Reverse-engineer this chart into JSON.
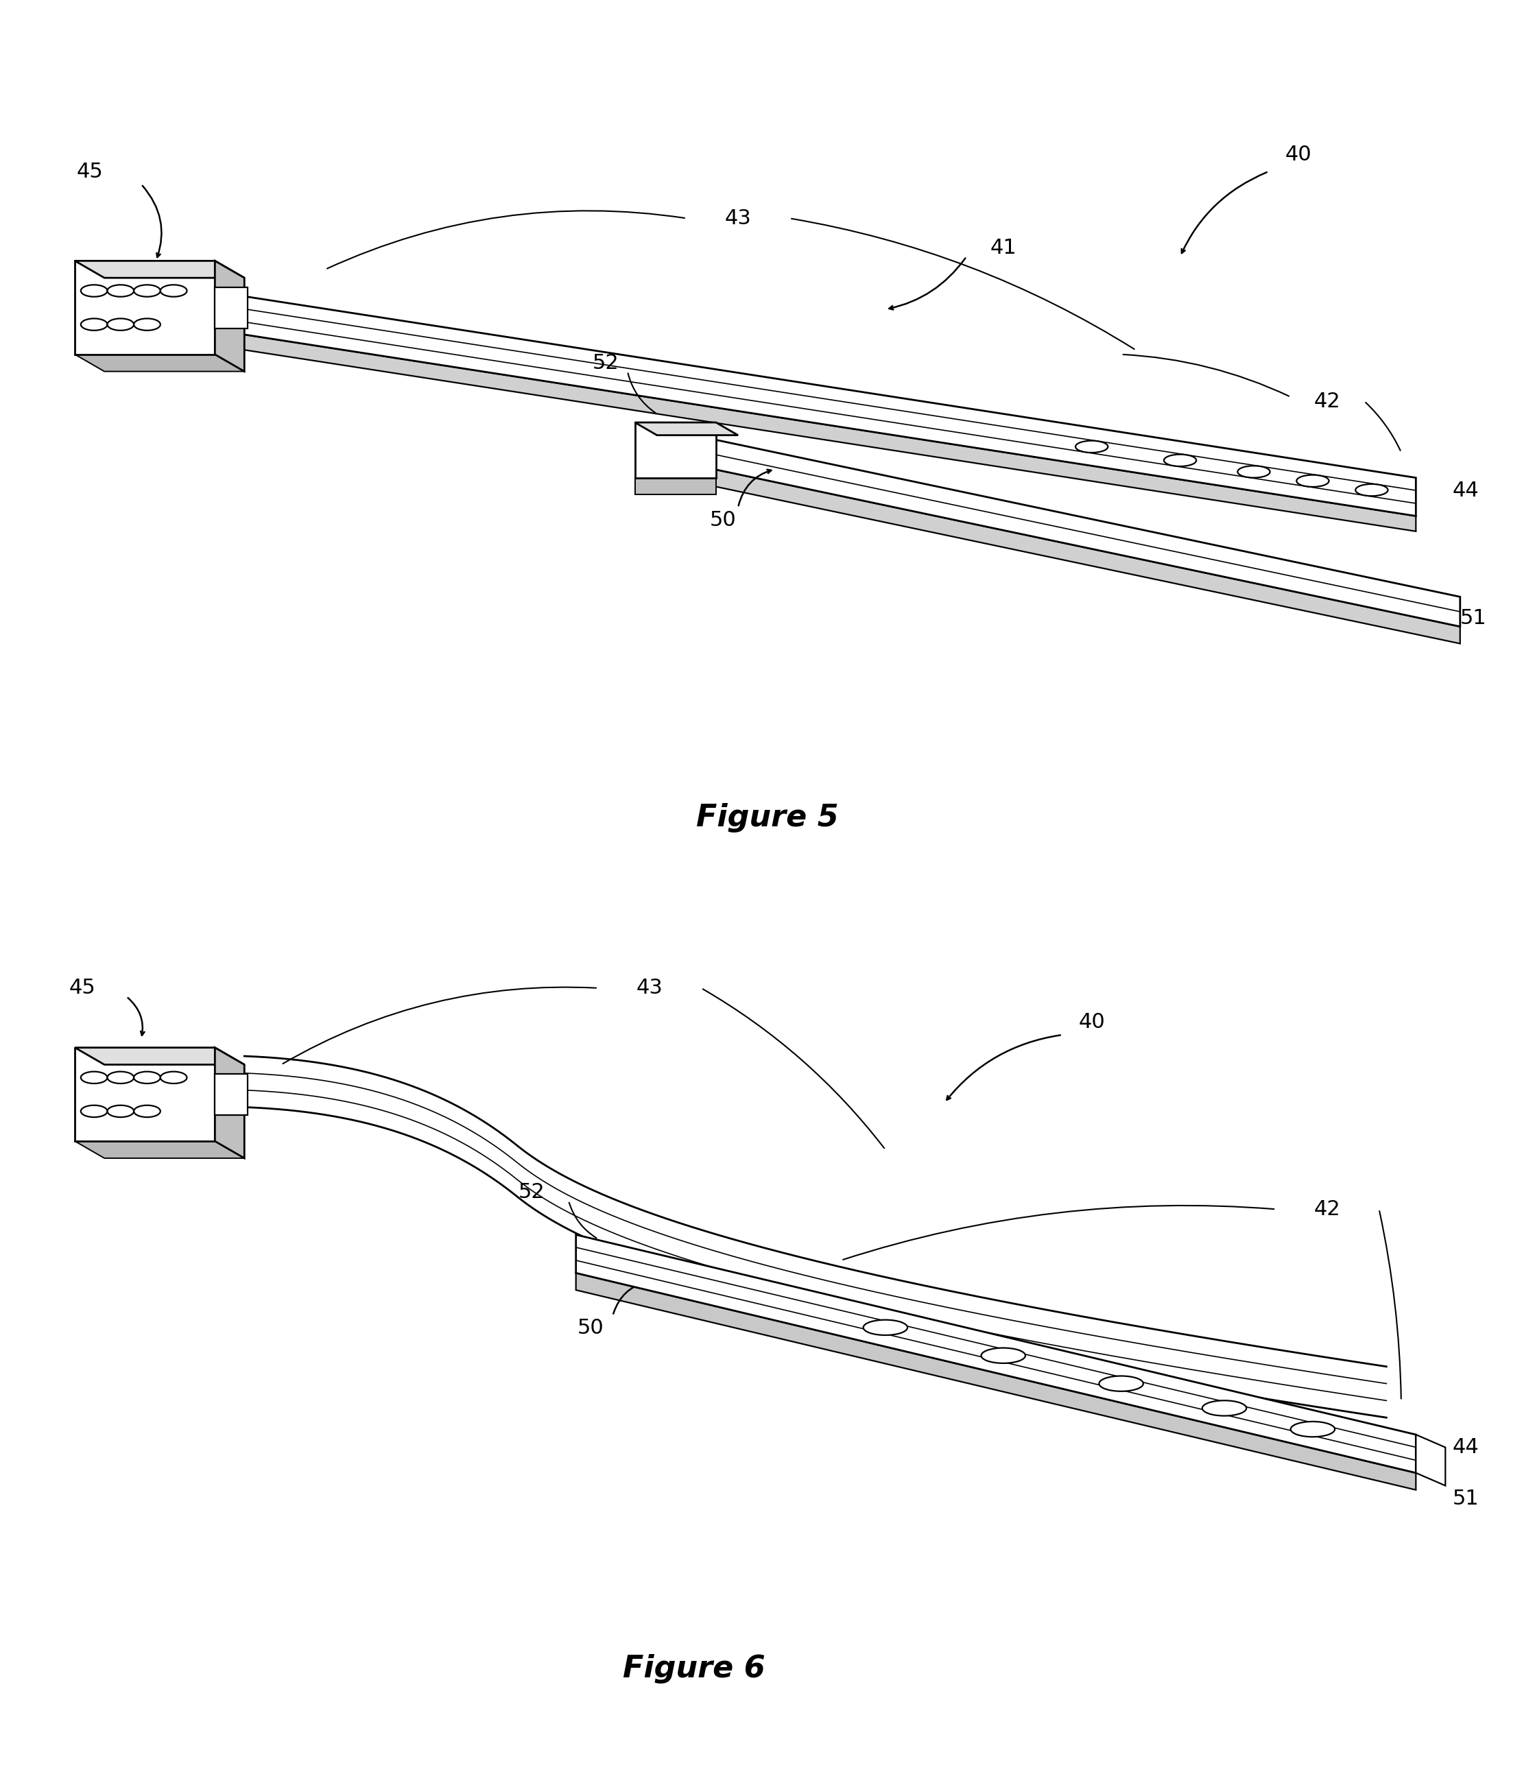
{
  "bg_color": "#ffffff",
  "line_color": "#000000",
  "label_color": "#000000",
  "fig5_title": "Figure 5",
  "fig6_title": "Figure 6",
  "label_fontsize": 22,
  "fig_title_fontsize": 32,
  "lw_main": 2.0,
  "lw_inner": 1.2,
  "lw_side": 1.5
}
